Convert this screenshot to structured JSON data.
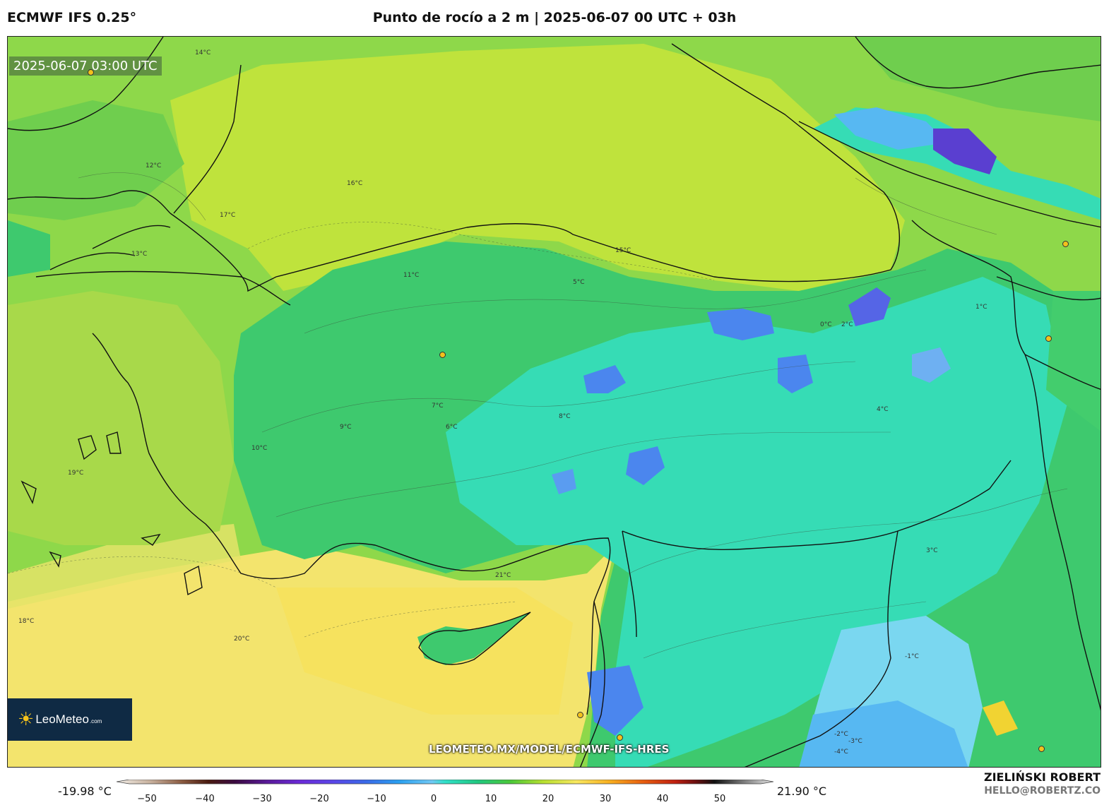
{
  "header": {
    "model": "ECMWF IFS 0.25°",
    "title": "Punto de rocío a 2 m | 2025-06-07 00 UTC + 03h"
  },
  "map": {
    "valid_time": "2025-06-07 03:00 UTC",
    "watermark_url": "LEOMETEO.MX/MODEL/ECMWF-IFS-HRES",
    "logo_text": "LeoMeteo",
    "logo_domain": ".com",
    "contour_labels": [
      "17°C",
      "16°C",
      "15°C",
      "13°C",
      "12°C",
      "11°C",
      "10°C",
      "9°C",
      "8°C",
      "7°C",
      "6°C",
      "5°C",
      "4°C",
      "3°C",
      "2°C",
      "1°C",
      "0°C",
      "-1°C",
      "-2°C",
      "-3°C",
      "-4°C",
      "18°C",
      "19°C",
      "20°C",
      "21°C",
      "14°C"
    ]
  },
  "colorbar": {
    "min_label": "-19.98 °C",
    "max_label": "21.90 °C",
    "ticks": [
      "−50",
      "−40",
      "−30",
      "−20",
      "−10",
      "0",
      "10",
      "20",
      "30",
      "40",
      "50"
    ]
  },
  "credits": {
    "author": "ZIELIŃSKI ROBERT",
    "email": "HELLO@ROBERTZ.CO"
  },
  "colors": {
    "sea_yellow": "#f6e36a",
    "green_high": "#8ed84a",
    "green_mid": "#3fc86a",
    "teal_low": "#37dcb8",
    "blue_cold": "#4b86ee",
    "purple_cold": "#5a3fd0"
  }
}
